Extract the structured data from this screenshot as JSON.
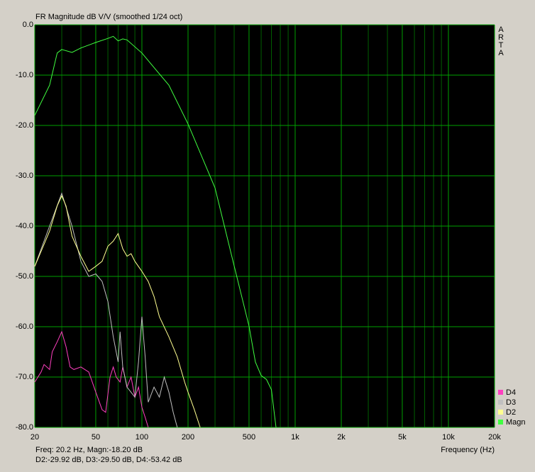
{
  "chart_data": {
    "type": "line",
    "title": "FR Magnitude dB V/V (smoothed 1/24 oct)",
    "watermark": "ARTA",
    "xlabel": "Frequency (Hz)",
    "xscale": "log",
    "status": [
      "Freq: 20.2 Hz, Magn:-18.20 dB",
      "D2:-29.92 dB, D3:-29.50 dB, D4:-53.42 dB"
    ],
    "xlim": [
      20,
      20000
    ],
    "ylim": [
      -80,
      0
    ],
    "xticks": [
      20,
      50,
      100,
      200,
      500,
      {
        "value": 1000,
        "label": "1k"
      },
      {
        "value": 2000,
        "label": "2k"
      },
      {
        "value": 5000,
        "label": "5k"
      },
      {
        "value": 10000,
        "label": "10k"
      },
      {
        "value": 20000,
        "label": "20k"
      }
    ],
    "xminorticks": [
      30,
      40,
      60,
      70,
      80,
      90,
      300,
      400,
      600,
      700,
      800,
      900,
      3000,
      4000,
      6000,
      7000,
      8000,
      9000
    ],
    "yticks": [
      {
        "value": 0,
        "label": "0.0"
      },
      {
        "value": -10,
        "label": "-10.0"
      },
      {
        "value": -20,
        "label": "-20.0"
      },
      {
        "value": -30,
        "label": "-30.0"
      },
      {
        "value": -40,
        "label": "-40.0"
      },
      {
        "value": -50,
        "label": "-50.0"
      },
      {
        "value": -60,
        "label": "-60.0"
      },
      {
        "value": -70,
        "label": "-70.0"
      },
      {
        "value": -80,
        "label": "-80.0"
      }
    ],
    "grid": true,
    "legend": "bottom-right",
    "series": [
      {
        "name": "D4",
        "color": "#ff40c0",
        "x": [
          20,
          22,
          23,
          25,
          26,
          28,
          30,
          32,
          34,
          36,
          40,
          45,
          50,
          55,
          58,
          62,
          65,
          68,
          72,
          75,
          80,
          85,
          90,
          95,
          100,
          105,
          110
        ],
        "values": [
          -71,
          -69,
          -67.5,
          -68.5,
          -65,
          -63,
          -61,
          -64,
          -68,
          -68.5,
          -68,
          -69,
          -73,
          -76.5,
          -77,
          -70,
          -68,
          -70,
          -71,
          -68,
          -72,
          -70,
          -74,
          -72,
          -76,
          -78,
          -80
        ]
      },
      {
        "name": "D3",
        "color": "#c0c0c0",
        "x": [
          20,
          25,
          30,
          35,
          40,
          45,
          50,
          55,
          60,
          65,
          70,
          72,
          75,
          80,
          90,
          95,
          100,
          105,
          110,
          120,
          130,
          140,
          150,
          160,
          170
        ],
        "values": [
          -48,
          -40,
          -33.5,
          -40,
          -47,
          -50,
          -49.5,
          -51,
          -55,
          -62,
          -67,
          -61,
          -68,
          -72,
          -74,
          -67,
          -58,
          -66,
          -75,
          -72,
          -74,
          -70,
          -73,
          -77,
          -80
        ]
      },
      {
        "name": "D2",
        "color": "#ffff90",
        "x": [
          20,
          25,
          28,
          30,
          32,
          35,
          40,
          45,
          50,
          55,
          60,
          65,
          70,
          75,
          80,
          85,
          90,
          100,
          110,
          120,
          130,
          150,
          170,
          190,
          200,
          220,
          240
        ],
        "values": [
          -48,
          -41,
          -36,
          -34,
          -36,
          -42,
          -46,
          -49,
          -48,
          -47,
          -44,
          -43,
          -41.5,
          -44.5,
          -46,
          -45.5,
          -47,
          -49,
          -51,
          -54,
          -58,
          -62,
          -66,
          -71,
          -73,
          -76.5,
          -80
        ]
      },
      {
        "name": "Magn",
        "color": "#40ff40",
        "x": [
          20,
          25,
          28,
          30,
          35,
          40,
          50,
          60,
          65,
          70,
          75,
          80,
          100,
          120,
          150,
          200,
          300,
          400,
          500,
          550,
          600,
          650,
          700,
          750
        ],
        "values": [
          -18,
          -12,
          -5.6,
          -4.9,
          -5.5,
          -4.6,
          -3.5,
          -2.7,
          -2.3,
          -3.2,
          -2.8,
          -3,
          -5.6,
          -8.5,
          -12,
          -19.7,
          -32.4,
          -47.9,
          -59.9,
          -67,
          -69.7,
          -70.5,
          -72.5,
          -80
        ]
      }
    ]
  }
}
